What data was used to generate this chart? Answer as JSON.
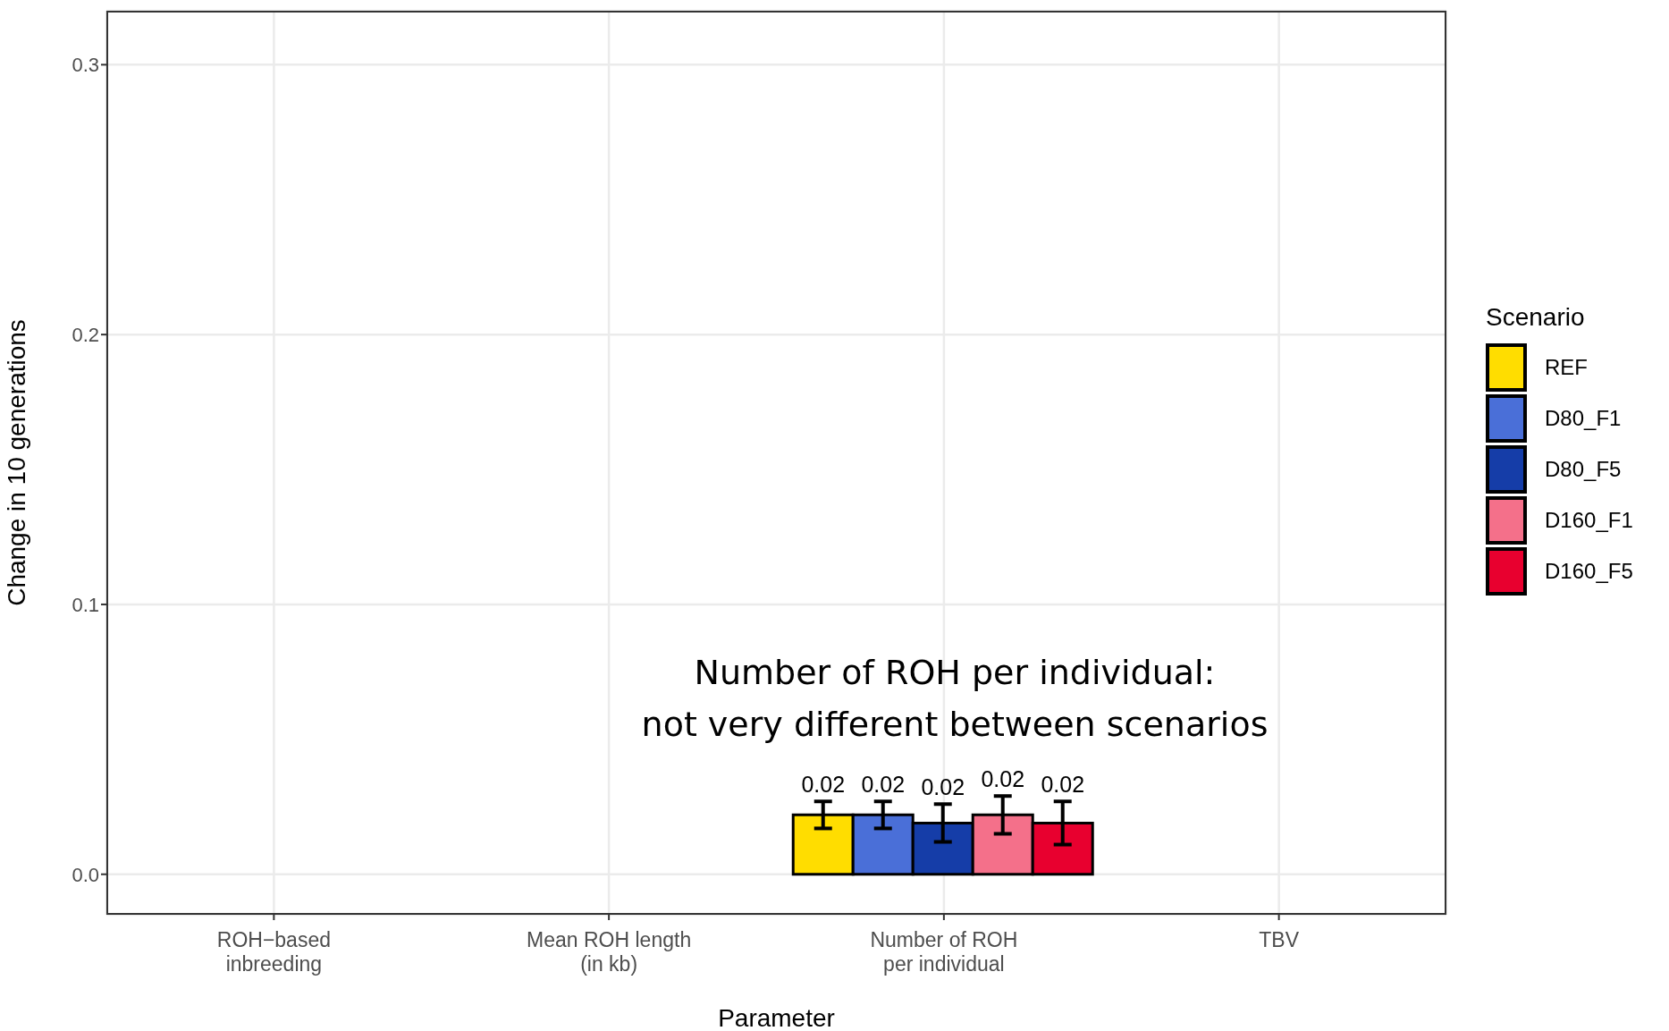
{
  "chart_data": {
    "type": "bar",
    "xlabel": "Parameter",
    "ylabel": "Change in 10 generations",
    "legend_title": "Scenario",
    "legend": "right",
    "categories": [
      "ROH−based inbreeding",
      "Mean ROH length (in kb)",
      "Number of ROH per individual",
      "TBV"
    ],
    "series": [
      {
        "name": "REF",
        "color": "#ffdd00",
        "values": [
          0,
          0,
          0.022,
          null
        ],
        "errors": [
          null,
          null,
          0.005,
          null
        ],
        "value_labels": [
          null,
          null,
          "0.02",
          null
        ]
      },
      {
        "name": "D80_F1",
        "color": "#4a6fd8",
        "values": [
          0,
          0,
          0.022,
          null
        ],
        "errors": [
          null,
          null,
          0.005,
          null
        ],
        "value_labels": [
          null,
          null,
          "0.02",
          null
        ]
      },
      {
        "name": "D80_F5",
        "color": "#153da8",
        "values": [
          0,
          0,
          0.019,
          null
        ],
        "errors": [
          null,
          null,
          0.007,
          null
        ],
        "value_labels": [
          null,
          null,
          "0.02",
          null
        ]
      },
      {
        "name": "D160_F1",
        "color": "#f4708a",
        "values": [
          0,
          0,
          0.022,
          null
        ],
        "errors": [
          null,
          null,
          0.007,
          null
        ],
        "value_labels": [
          null,
          null,
          "0.02",
          null
        ]
      },
      {
        "name": "D160_F5",
        "color": "#e8002f",
        "values": [
          0,
          0,
          0.019,
          null
        ],
        "errors": [
          null,
          null,
          0.008,
          null
        ],
        "value_labels": [
          null,
          null,
          "0.02",
          null
        ]
      }
    ],
    "ylim": [
      -0.015,
      0.32
    ],
    "yticks": [
      {
        "value": 0,
        "label": "0.0"
      },
      {
        "value": 0.1,
        "label": "0.1"
      },
      {
        "value": 0.2,
        "label": "0.2"
      },
      {
        "value": 0.3,
        "label": "0.3"
      }
    ],
    "grid": true,
    "annotations": [
      "Number of ROH per individual: not very different between scenarios"
    ]
  }
}
